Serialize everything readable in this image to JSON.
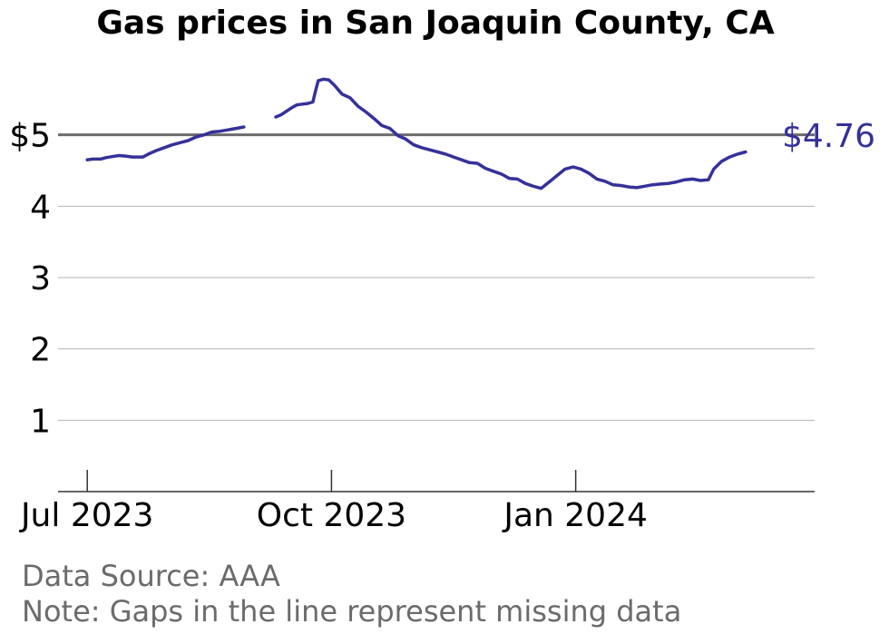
{
  "chart_data": {
    "type": "line",
    "title": "Gas prices in San Joaquin County, CA",
    "xlabel": "",
    "ylabel": "",
    "ylim": [
      0,
      6
    ],
    "y_ticks": [
      {
        "value": 1,
        "label": "1"
      },
      {
        "value": 2,
        "label": "2"
      },
      {
        "value": 3,
        "label": "3"
      },
      {
        "value": 4,
        "label": "4"
      },
      {
        "value": 5,
        "label": "$5"
      }
    ],
    "x_ticks": [
      {
        "date": "2023-07-01",
        "label": "Jul 2023"
      },
      {
        "date": "2023-10-01",
        "label": "Oct 2023"
      },
      {
        "date": "2024-01-01",
        "label": "Jan 2024"
      }
    ],
    "xlim": [
      "2023-06-20",
      "2024-03-31"
    ],
    "reference_line": {
      "value": 5
    },
    "end_label": "$4.76",
    "line_color": "#35319a",
    "reference_color": "#6b6b6b",
    "grid": true,
    "series": [
      {
        "segments": [
          [
            [
              "2023-07-01",
              4.65
            ],
            [
              "2023-07-03",
              4.66
            ],
            [
              "2023-07-06",
              4.66
            ],
            [
              "2023-07-08",
              4.68
            ],
            [
              "2023-07-11",
              4.7
            ],
            [
              "2023-07-13",
              4.71
            ],
            [
              "2023-07-16",
              4.7
            ],
            [
              "2023-07-18",
              4.69
            ],
            [
              "2023-07-22",
              4.69
            ],
            [
              "2023-07-24",
              4.73
            ],
            [
              "2023-07-27",
              4.78
            ],
            [
              "2023-07-30",
              4.82
            ],
            [
              "2023-08-02",
              4.86
            ],
            [
              "2023-08-05",
              4.89
            ],
            [
              "2023-08-08",
              4.92
            ],
            [
              "2023-08-11",
              4.97
            ],
            [
              "2023-08-14",
              5.0
            ],
            [
              "2023-08-17",
              5.04
            ],
            [
              "2023-08-20",
              5.05
            ],
            [
              "2023-08-23",
              5.07
            ],
            [
              "2023-08-26",
              5.09
            ],
            [
              "2023-08-29",
              5.11
            ]
          ],
          [
            [
              "2023-09-10",
              5.25
            ],
            [
              "2023-09-12",
              5.28
            ],
            [
              "2023-09-14",
              5.33
            ],
            [
              "2023-09-16",
              5.38
            ],
            [
              "2023-09-18",
              5.42
            ],
            [
              "2023-09-20",
              5.43
            ],
            [
              "2023-09-22",
              5.44
            ],
            [
              "2023-09-24",
              5.46
            ],
            [
              "2023-09-25",
              5.62
            ],
            [
              "2023-09-26",
              5.76
            ],
            [
              "2023-09-28",
              5.78
            ],
            [
              "2023-09-30",
              5.77
            ],
            [
              "2023-10-02",
              5.7
            ],
            [
              "2023-10-05",
              5.57
            ],
            [
              "2023-10-08",
              5.52
            ],
            [
              "2023-10-11",
              5.4
            ],
            [
              "2023-10-14",
              5.32
            ],
            [
              "2023-10-17",
              5.23
            ],
            [
              "2023-10-20",
              5.13
            ],
            [
              "2023-10-23",
              5.09
            ],
            [
              "2023-10-26",
              4.99
            ],
            [
              "2023-10-29",
              4.94
            ],
            [
              "2023-11-01",
              4.86
            ],
            [
              "2023-11-04",
              4.82
            ],
            [
              "2023-11-07",
              4.79
            ],
            [
              "2023-11-10",
              4.76
            ],
            [
              "2023-11-13",
              4.73
            ],
            [
              "2023-11-16",
              4.69
            ],
            [
              "2023-11-19",
              4.65
            ],
            [
              "2023-11-22",
              4.61
            ],
            [
              "2023-11-25",
              4.6
            ],
            [
              "2023-11-28",
              4.53
            ],
            [
              "2023-12-01",
              4.49
            ],
            [
              "2023-12-04",
              4.45
            ],
            [
              "2023-12-07",
              4.39
            ],
            [
              "2023-12-10",
              4.38
            ],
            [
              "2023-12-13",
              4.32
            ],
            [
              "2023-12-16",
              4.28
            ],
            [
              "2023-12-19",
              4.25
            ],
            [
              "2023-12-22",
              4.34
            ],
            [
              "2023-12-25",
              4.43
            ],
            [
              "2023-12-28",
              4.52
            ],
            [
              "2023-12-31",
              4.55
            ],
            [
              "2024-01-03",
              4.52
            ],
            [
              "2024-01-06",
              4.46
            ],
            [
              "2024-01-09",
              4.38
            ],
            [
              "2024-01-12",
              4.35
            ],
            [
              "2024-01-15",
              4.3
            ],
            [
              "2024-01-18",
              4.29
            ],
            [
              "2024-01-21",
              4.27
            ],
            [
              "2024-01-24",
              4.26
            ],
            [
              "2024-01-27",
              4.28
            ],
            [
              "2024-01-30",
              4.3
            ],
            [
              "2024-02-02",
              4.31
            ],
            [
              "2024-02-05",
              4.32
            ],
            [
              "2024-02-08",
              4.34
            ],
            [
              "2024-02-11",
              4.37
            ],
            [
              "2024-02-14",
              4.38
            ],
            [
              "2024-02-17",
              4.36
            ],
            [
              "2024-02-20",
              4.37
            ],
            [
              "2024-02-22",
              4.52
            ],
            [
              "2024-02-25",
              4.63
            ],
            [
              "2024-02-28",
              4.69
            ],
            [
              "2024-03-02",
              4.73
            ],
            [
              "2024-03-05",
              4.76
            ]
          ]
        ]
      }
    ]
  },
  "footer": {
    "source": "Data Source: AAA",
    "note": "Note: Gaps in the line represent missing data"
  }
}
